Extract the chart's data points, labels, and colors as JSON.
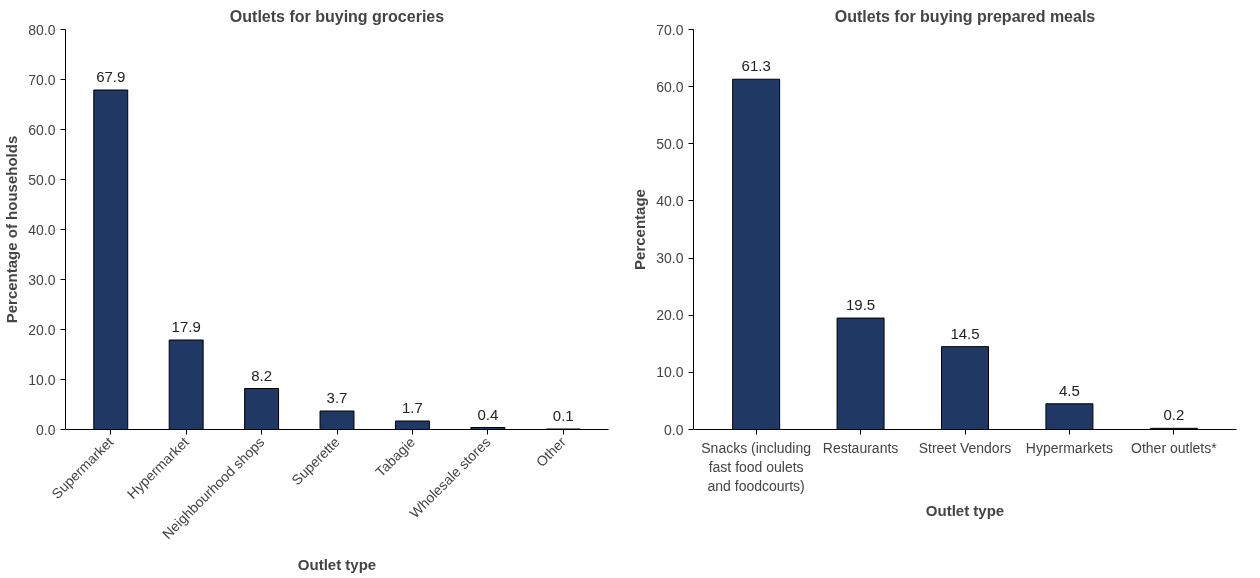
{
  "chart_data": [
    {
      "type": "bar",
      "title": "Outlets for buying groceries",
      "xlabel": "Outlet type",
      "ylabel": "Percentage of households",
      "categories": [
        "Supermarket",
        "Hypermarket",
        "Neighbourhood shops",
        "Superette",
        "Tabagie",
        "Wholesale stores",
        "Other"
      ],
      "values": [
        67.9,
        17.9,
        8.2,
        3.7,
        1.7,
        0.4,
        0.1
      ],
      "color": "#1f3864",
      "ylim": [
        0,
        80
      ],
      "yticks": [
        {
          "value": 0,
          "label": "0.0"
        },
        {
          "value": 10,
          "label": "10.0"
        },
        {
          "value": 20,
          "label": "20.0"
        },
        {
          "value": 30,
          "label": "30.0"
        },
        {
          "value": 40,
          "label": "40.0"
        },
        {
          "value": 50,
          "label": "50.0"
        },
        {
          "value": 60,
          "label": "60.0"
        },
        {
          "value": 70,
          "label": "70.0"
        },
        {
          "value": 80,
          "label": "80.0"
        }
      ],
      "data_labels": true,
      "grid": false
    },
    {
      "type": "bar",
      "title": "Outlets for buying prepared meals",
      "xlabel": "Outlet type",
      "ylabel": "Percentage",
      "categories": [
        "Snacks (including fast food oulets and foodcourts)",
        "Restaurants",
        "Street Vendors",
        "Hypermarkets",
        "Other outlets*"
      ],
      "values": [
        61.3,
        19.5,
        14.5,
        4.5,
        0.2
      ],
      "color": "#1f3864",
      "ylim": [
        0,
        70
      ],
      "yticks": [
        {
          "value": 0,
          "label": "0.0"
        },
        {
          "value": 10,
          "label": "10.0"
        },
        {
          "value": 20,
          "label": "20.0"
        },
        {
          "value": 30,
          "label": "30.0"
        },
        {
          "value": 40,
          "label": "40.0"
        },
        {
          "value": 50,
          "label": "50.0"
        },
        {
          "value": 60,
          "label": "60.0"
        },
        {
          "value": 70,
          "label": "70.0"
        }
      ],
      "data_labels": true,
      "grid": false
    }
  ]
}
